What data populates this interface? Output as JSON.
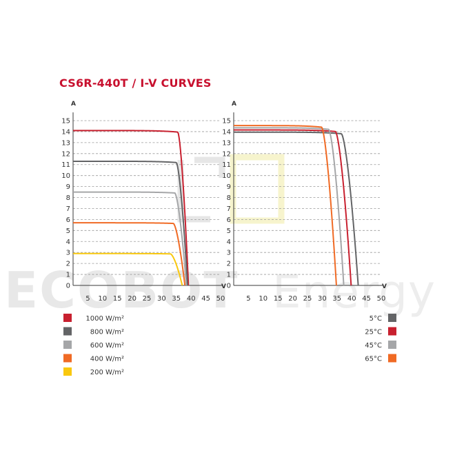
{
  "title": "CS6R-440T / I-V CURVES",
  "watermark": {
    "brand": "ECOBOT",
    "suffix": "Energy"
  },
  "chart_data": [
    {
      "type": "line",
      "title": "",
      "xlabel": "V",
      "ylabel": "A",
      "xlim": [
        0,
        50
      ],
      "ylim": [
        0,
        15
      ],
      "xticks": [
        5,
        10,
        15,
        20,
        25,
        30,
        35,
        40,
        45,
        50
      ],
      "yticks": [
        0,
        1,
        2,
        3,
        4,
        5,
        6,
        7,
        8,
        9,
        10,
        11,
        12,
        13,
        14,
        15
      ],
      "grid": "dashed-horizontal",
      "legend_position": "below-left",
      "series": [
        {
          "name": "1000 W/m²",
          "color": "#c8202f",
          "isc": 14.1,
          "voc": 39.1,
          "knee": 35.5
        },
        {
          "name": "800 W/m²",
          "color": "#636466",
          "isc": 11.3,
          "voc": 38.8,
          "knee": 35.0
        },
        {
          "name": "600 W/m²",
          "color": "#a5a6a8",
          "isc": 8.5,
          "voc": 38.4,
          "knee": 34.5
        },
        {
          "name": "400 W/m²",
          "color": "#f06a24",
          "isc": 5.7,
          "voc": 37.9,
          "knee": 34.0
        },
        {
          "name": "200 W/m²",
          "color": "#f9c80e",
          "isc": 2.9,
          "voc": 37.0,
          "knee": 33.0
        }
      ]
    },
    {
      "type": "line",
      "title": "",
      "xlabel": "V",
      "ylabel": "A",
      "xlim": [
        0,
        50
      ],
      "ylim": [
        0,
        15
      ],
      "xticks": [
        5,
        10,
        15,
        20,
        25,
        30,
        35,
        40,
        45,
        50
      ],
      "yticks": [
        0,
        1,
        2,
        3,
        4,
        5,
        6,
        7,
        8,
        9,
        10,
        11,
        12,
        13,
        14,
        15
      ],
      "grid": "dashed-horizontal",
      "legend_position": "below-right",
      "series": [
        {
          "name": "5°C",
          "color": "#636466",
          "isc": 13.95,
          "voc": 42.2,
          "knee": 36.5
        },
        {
          "name": "25°C",
          "color": "#c8202f",
          "isc": 14.15,
          "voc": 39.8,
          "knee": 34.5
        },
        {
          "name": "45°C",
          "color": "#a5a6a8",
          "isc": 14.35,
          "voc": 37.3,
          "knee": 32.2
        },
        {
          "name": "65°C",
          "color": "#f06a24",
          "isc": 14.55,
          "voc": 34.8,
          "knee": 29.8
        }
      ]
    }
  ]
}
